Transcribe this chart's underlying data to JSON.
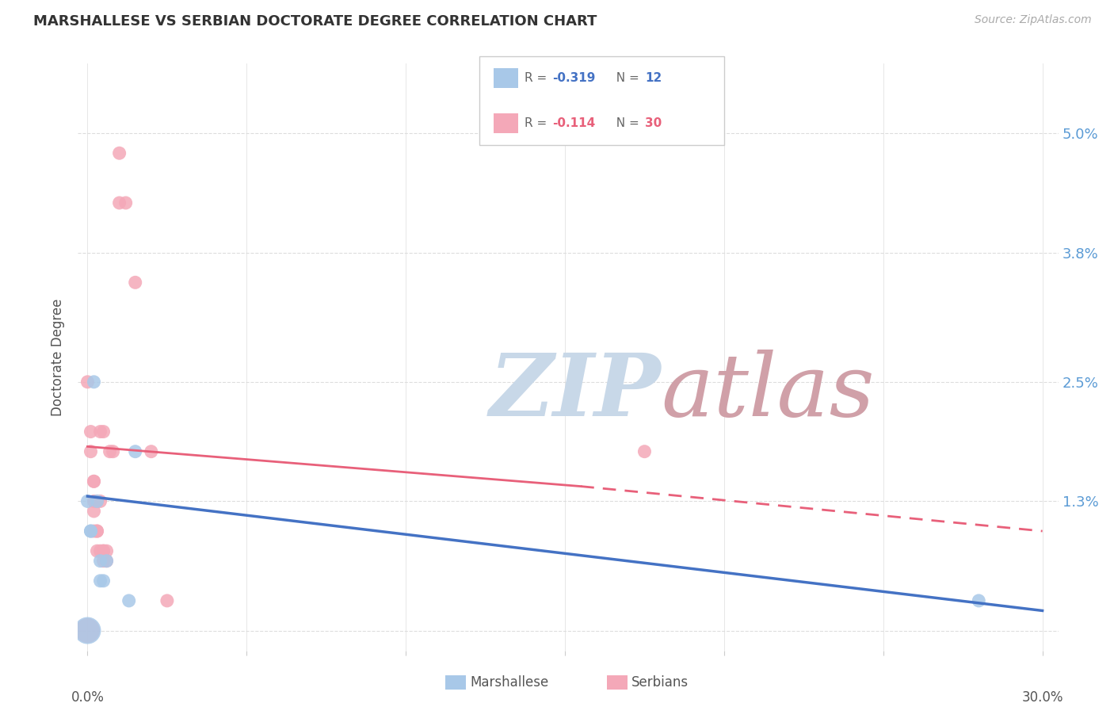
{
  "title": "MARSHALLESE VS SERBIAN DOCTORATE DEGREE CORRELATION CHART",
  "source": "Source: ZipAtlas.com",
  "ylabel": "Doctorate Degree",
  "yticks": [
    0.0,
    0.013,
    0.025,
    0.038,
    0.05
  ],
  "ytick_labels": [
    "",
    "1.3%",
    "2.5%",
    "3.8%",
    "5.0%"
  ],
  "xticks": [
    0.0,
    0.05,
    0.1,
    0.15,
    0.2,
    0.25,
    0.3
  ],
  "xlim": [
    -0.003,
    0.305
  ],
  "ylim": [
    -0.002,
    0.057
  ],
  "marshallese_R": -0.319,
  "marshallese_N": 12,
  "serbian_R": -0.114,
  "serbian_N": 30,
  "marshallese_color": "#a8c8e8",
  "serbian_color": "#f4a8b8",
  "marshallese_line_color": "#4472c4",
  "serbian_line_color": "#e8607a",
  "watermark_zip_color": "#c8d8e8",
  "watermark_atlas_color": "#d0a0a8",
  "background_color": "#ffffff",
  "grid_color": "#dddddd",
  "marshallese_points": [
    [
      0.0,
      0.013
    ],
    [
      0.001,
      0.01
    ],
    [
      0.001,
      0.01
    ],
    [
      0.002,
      0.025
    ],
    [
      0.003,
      0.013
    ],
    [
      0.004,
      0.007
    ],
    [
      0.004,
      0.005
    ],
    [
      0.005,
      0.005
    ],
    [
      0.006,
      0.007
    ],
    [
      0.015,
      0.018
    ],
    [
      0.013,
      0.003
    ],
    [
      0.28,
      0.003
    ]
  ],
  "serbian_points": [
    [
      0.0,
      0.025
    ],
    [
      0.001,
      0.02
    ],
    [
      0.001,
      0.018
    ],
    [
      0.002,
      0.015
    ],
    [
      0.002,
      0.015
    ],
    [
      0.002,
      0.013
    ],
    [
      0.002,
      0.012
    ],
    [
      0.002,
      0.01
    ],
    [
      0.003,
      0.01
    ],
    [
      0.003,
      0.013
    ],
    [
      0.003,
      0.008
    ],
    [
      0.004,
      0.013
    ],
    [
      0.004,
      0.02
    ],
    [
      0.005,
      0.008
    ],
    [
      0.005,
      0.008
    ],
    [
      0.005,
      0.007
    ],
    [
      0.005,
      0.02
    ],
    [
      0.006,
      0.008
    ],
    [
      0.006,
      0.007
    ],
    [
      0.007,
      0.018
    ],
    [
      0.008,
      0.018
    ],
    [
      0.01,
      0.048
    ],
    [
      0.01,
      0.043
    ],
    [
      0.012,
      0.043
    ],
    [
      0.015,
      0.035
    ],
    [
      0.02,
      0.018
    ],
    [
      0.175,
      0.018
    ],
    [
      0.025,
      0.003
    ],
    [
      0.003,
      0.01
    ],
    [
      0.004,
      0.008
    ]
  ],
  "marsh_line_x0": 0.0,
  "marsh_line_x1": 0.3,
  "marsh_line_y0": 0.0135,
  "marsh_line_y1": 0.002,
  "serb_line_solid_x0": 0.0,
  "serb_line_solid_x1": 0.155,
  "serb_line_solid_y0": 0.0185,
  "serb_line_solid_y1": 0.0145,
  "serb_line_dash_x0": 0.155,
  "serb_line_dash_x1": 0.3,
  "serb_line_dash_y0": 0.0145,
  "serb_line_dash_y1": 0.01
}
